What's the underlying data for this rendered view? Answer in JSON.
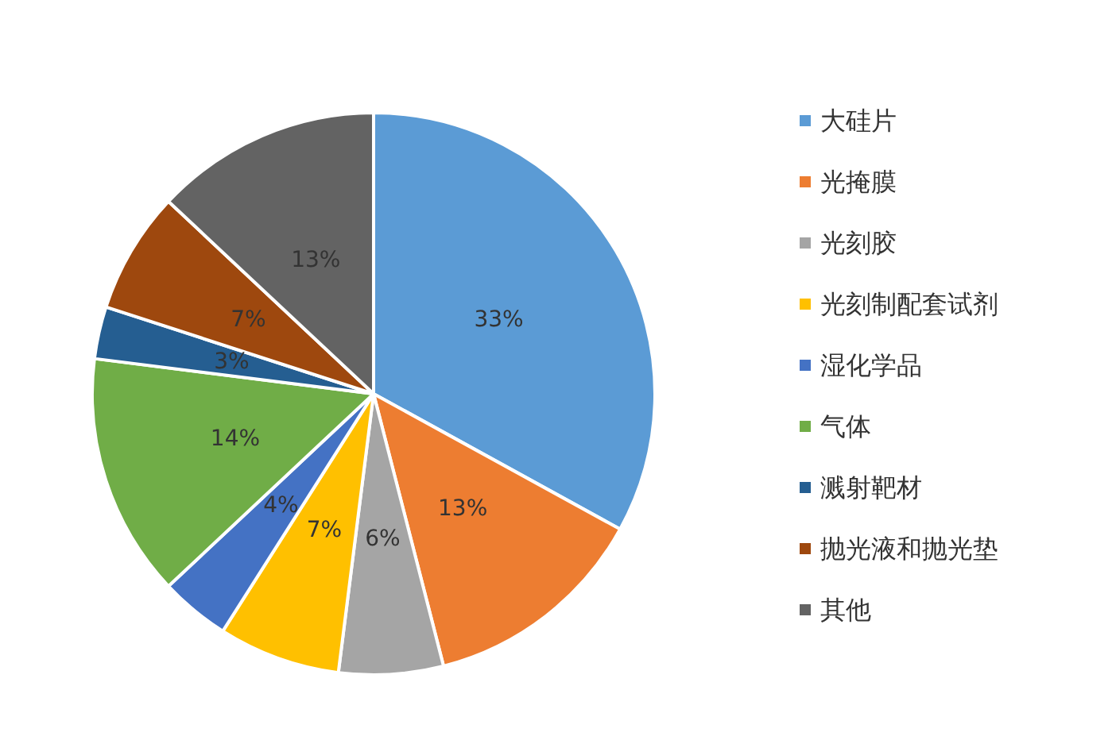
{
  "chart_data": {
    "type": "pie",
    "categories": [
      "大硅片",
      "光掩膜",
      "光刻胶",
      "光刻制配套试剂",
      "湿化学品",
      "气体",
      "溅射靶材",
      "抛光液和抛光垫",
      "其他"
    ],
    "values": [
      33,
      13,
      6,
      7,
      4,
      14,
      3,
      7,
      13
    ],
    "value_labels": [
      "33%",
      "13%",
      "6%",
      "7%",
      "4%",
      "14%",
      "3%",
      "7%",
      "13%"
    ],
    "colors": [
      "#5b9bd5",
      "#ed7d31",
      "#a5a5a5",
      "#ffc000",
      "#4472c4",
      "#70ad47",
      "#255e91",
      "#9e480e",
      "#636363"
    ],
    "legend": "right"
  }
}
